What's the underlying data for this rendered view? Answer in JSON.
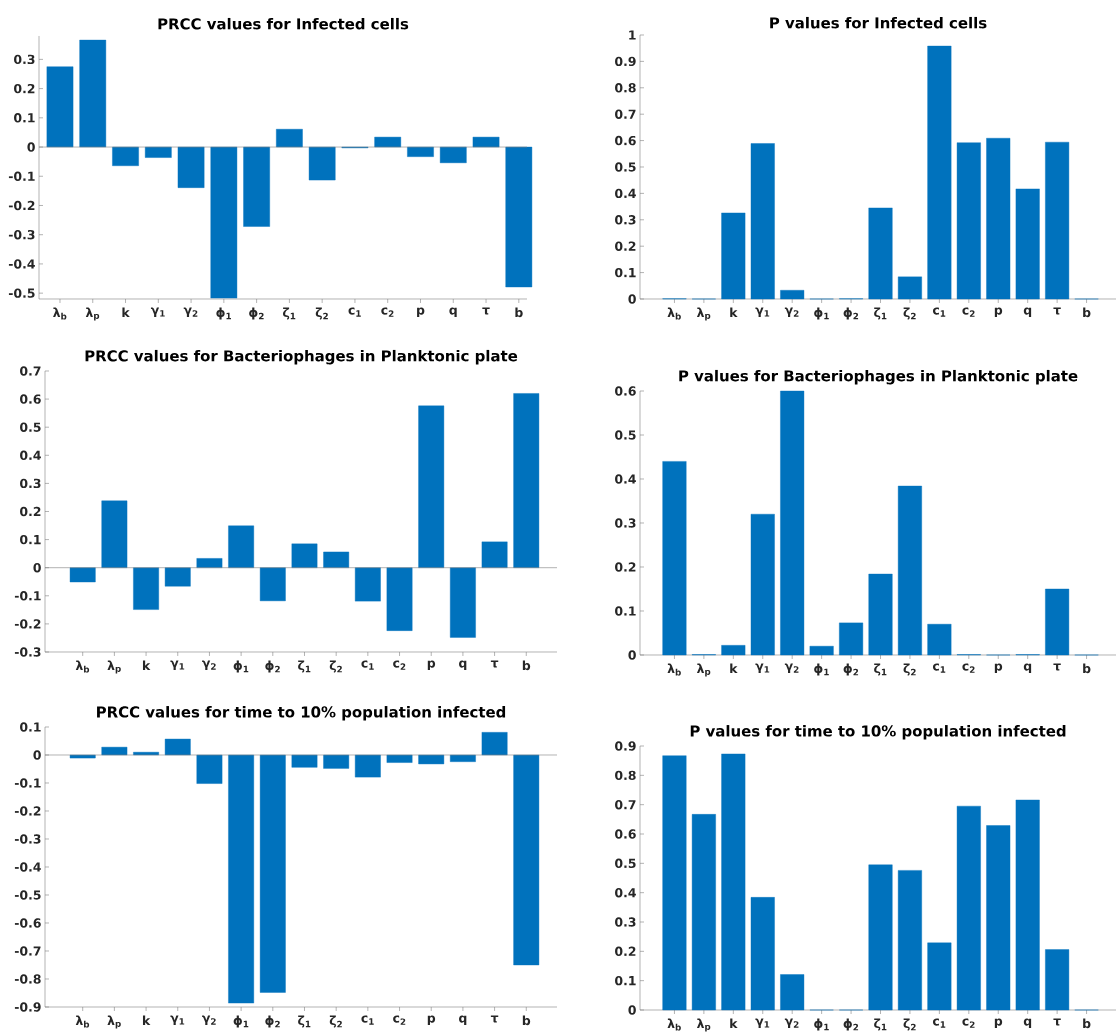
{
  "chart_data": [
    {
      "type": "bar",
      "title": "PRCC values for Infected cells",
      "categories": [
        "λ$_{b}$",
        "λ$_{p}$",
        "k",
        "γ$_{1}$",
        "γ$_{2}$",
        "ϕ$_{1}$",
        "ϕ$_{2}$",
        "ζ$_{1}$",
        "ζ$_{2}$",
        "c$_{1}$",
        "c$_{2}$",
        "p",
        "q",
        "τ",
        "b"
      ],
      "values": [
        0.275,
        0.366,
        -0.064,
        -0.036,
        -0.139,
        -0.517,
        -0.272,
        0.061,
        -0.113,
        -0.003,
        0.034,
        -0.033,
        -0.054,
        0.034,
        -0.479
      ],
      "color": "#0072bd",
      "ylim": [
        -0.52,
        0.38
      ],
      "yticks": [
        -0.5,
        -0.4,
        -0.3,
        -0.2,
        -0.1,
        0,
        0.1,
        0.2,
        0.3
      ]
    },
    {
      "type": "bar",
      "title": "P values for Infected cells",
      "categories": [
        "λ$_{b}$",
        "λ$_{p}$",
        "k",
        "γ$_{1}$",
        "γ$_{2}$",
        "ϕ$_{1}$",
        "ϕ$_{2}$",
        "ζ$_{1}$",
        "ζ$_{2}$",
        "c$_{1}$",
        "c$_{2}$",
        "p",
        "q",
        "τ",
        "b"
      ],
      "values": [
        0.001,
        0,
        0.326,
        0.589,
        0.033,
        0,
        0.001,
        0.345,
        0.084,
        0.958,
        0.592,
        0.609,
        0.417,
        0.594,
        0
      ],
      "color": "#0072bd",
      "ylim": [
        0,
        1
      ],
      "yticks": [
        0,
        0.1,
        0.2,
        0.3,
        0.4,
        0.5,
        0.6,
        0.7,
        0.8,
        0.9,
        1
      ]
    },
    {
      "type": "bar",
      "title": "PRCC values for Bacteriophages in Planktonic plate",
      "categories": [
        "λ$_{b}$",
        "λ$_{p}$",
        "k",
        "γ$_{1}$",
        "γ$_{2}$",
        "ϕ$_{1}$",
        "ϕ$_{2}$",
        "ζ$_{1}$",
        "ζ$_{2}$",
        "c$_{1}$",
        "c$_{2}$",
        "p",
        "q",
        "τ",
        "b"
      ],
      "values": [
        -0.051,
        0.238,
        -0.149,
        -0.066,
        0.033,
        0.149,
        -0.118,
        0.085,
        0.056,
        -0.119,
        -0.224,
        0.576,
        -0.248,
        0.092,
        0.62
      ],
      "color": "#0072bd",
      "ylim": [
        -0.3,
        0.7
      ],
      "yticks": [
        -0.3,
        -0.2,
        -0.1,
        0,
        0.1,
        0.2,
        0.3,
        0.4,
        0.5,
        0.6,
        0.7
      ]
    },
    {
      "type": "bar",
      "title": "P values for Bacteriophages in Planktonic plate",
      "categories": [
        "λ$_{b}$",
        "λ$_{p}$",
        "k",
        "γ$_{1}$",
        "γ$_{2}$",
        "ϕ$_{1}$",
        "ϕ$_{2}$",
        "ζ$_{1}$",
        "ζ$_{2}$",
        "c$_{1}$",
        "c$_{2}$",
        "p",
        "q",
        "τ",
        "b"
      ],
      "values": [
        0.44,
        0.001,
        0.022,
        0.32,
        0.6,
        0.02,
        0.073,
        0.184,
        0.384,
        0.07,
        0.001,
        0,
        0.001,
        0.15,
        0
      ],
      "color": "#0072bd",
      "ylim": [
        0,
        0.6
      ],
      "yticks": [
        0,
        0.1,
        0.2,
        0.3,
        0.4,
        0.5,
        0.6
      ]
    },
    {
      "type": "bar",
      "title": "PRCC values for time to 10% population infected",
      "categories": [
        "λ$_{b}$",
        "λ$_{p}$",
        "k",
        "γ$_{1}$",
        "γ$_{2}$",
        "ϕ$_{1}$",
        "ϕ$_{2}$",
        "ζ$_{1}$",
        "ζ$_{2}$",
        "c$_{1}$",
        "c$_{2}$",
        "p",
        "q",
        "τ",
        "b"
      ],
      "values": [
        -0.011,
        0.028,
        0.01,
        0.057,
        -0.102,
        -0.886,
        -0.848,
        -0.044,
        -0.048,
        -0.079,
        -0.027,
        -0.032,
        -0.024,
        0.081,
        -0.75
      ],
      "color": "#0072bd",
      "ylim": [
        -0.9,
        0.1
      ],
      "yticks": [
        -0.9,
        -0.8,
        -0.7,
        -0.6,
        -0.5,
        -0.4,
        -0.3,
        -0.2,
        -0.1,
        0,
        0.1
      ]
    },
    {
      "type": "bar",
      "title": "P values for time to 10% population infected",
      "categories": [
        "λ$_{b}$",
        "λ$_{p}$",
        "k",
        "γ$_{1}$",
        "γ$_{2}$",
        "ϕ$_{1}$",
        "ϕ$_{2}$",
        "ζ$_{1}$",
        "ζ$_{2}$",
        "c$_{1}$",
        "c$_{2}$",
        "p",
        "q",
        "τ",
        "b"
      ],
      "values": [
        0.867,
        0.667,
        0.873,
        0.384,
        0.121,
        0,
        0,
        0.495,
        0.476,
        0.229,
        0.695,
        0.629,
        0.716,
        0.206,
        0
      ],
      "color": "#0072bd",
      "ylim": [
        0,
        0.9
      ],
      "yticks": [
        0,
        0.1,
        0.2,
        0.3,
        0.4,
        0.5,
        0.6,
        0.7,
        0.8,
        0.9
      ]
    }
  ]
}
